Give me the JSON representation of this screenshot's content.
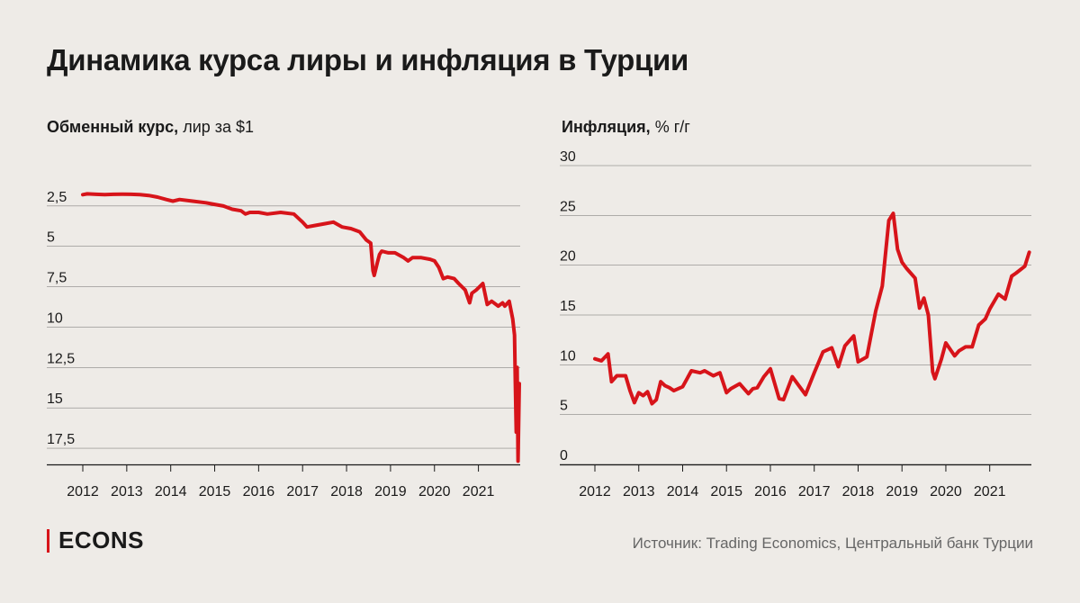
{
  "title": "Динамика курса лиры и инфляция в Турции",
  "brand": "ECONS",
  "source": "Источник: Trading Economics, Центральный банк Турции",
  "colors": {
    "line": "#d7141a",
    "grid": "#1a1a1a",
    "background": "#eeebe7",
    "accent": "#d7141a"
  },
  "chart_data": [
    {
      "type": "line",
      "title_bold": "Обменный курс,",
      "title_rest": " лир за $1",
      "y_inverted": true,
      "ylim": [
        0,
        18.5
      ],
      "y_ticks": [
        2.5,
        5,
        7.5,
        10,
        12.5,
        15,
        17.5
      ],
      "y_tick_labels": [
        "2,5",
        "5",
        "7,5",
        "10",
        "12,5",
        "15",
        "17,5"
      ],
      "xlim": [
        2012,
        2021.95
      ],
      "x_ticks": [
        2012,
        2013,
        2014,
        2015,
        2016,
        2017,
        2018,
        2019,
        2020,
        2021
      ],
      "x_tick_labels": [
        "2012",
        "2013",
        "2014",
        "2015",
        "2016",
        "2017",
        "2018",
        "2019",
        "2020",
        "2021"
      ],
      "grid": true,
      "series": [
        {
          "x": [
            2012.0,
            2012.1,
            2012.3,
            2012.5,
            2012.7,
            2012.9,
            2013.1,
            2013.3,
            2013.5,
            2013.7,
            2013.9,
            2014.05,
            2014.2,
            2014.5,
            2014.8,
            2015.0,
            2015.2,
            2015.4,
            2015.6,
            2015.7,
            2015.8,
            2016.0,
            2016.2,
            2016.5,
            2016.8,
            2017.0,
            2017.1,
            2017.3,
            2017.5,
            2017.7,
            2017.9,
            2018.1,
            2018.3,
            2018.45,
            2018.55,
            2018.6,
            2018.63,
            2018.7,
            2018.75,
            2018.8,
            2018.95,
            2019.1,
            2019.3,
            2019.4,
            2019.5,
            2019.7,
            2019.9,
            2020.0,
            2020.1,
            2020.2,
            2020.3,
            2020.45,
            2020.55,
            2020.7,
            2020.8,
            2020.85,
            2020.95,
            2021.1,
            2021.2,
            2021.3,
            2021.45,
            2021.55,
            2021.6,
            2021.7,
            2021.78,
            2021.82,
            2021.84,
            2021.86,
            2021.88,
            2021.9,
            2021.93
          ],
          "values": [
            1.8,
            1.75,
            1.78,
            1.8,
            1.78,
            1.77,
            1.78,
            1.8,
            1.85,
            1.95,
            2.1,
            2.2,
            2.1,
            2.2,
            2.3,
            2.4,
            2.5,
            2.7,
            2.8,
            3.0,
            2.9,
            2.9,
            3.0,
            2.9,
            3.0,
            3.5,
            3.8,
            3.7,
            3.6,
            3.5,
            3.8,
            3.9,
            4.1,
            4.6,
            4.8,
            6.5,
            6.8,
            6.0,
            5.5,
            5.3,
            5.4,
            5.4,
            5.7,
            5.9,
            5.7,
            5.7,
            5.8,
            5.9,
            6.3,
            7.0,
            6.9,
            7.0,
            7.3,
            7.7,
            8.5,
            7.9,
            7.7,
            7.3,
            8.6,
            8.4,
            8.7,
            8.5,
            8.7,
            8.4,
            9.5,
            10.5,
            13.5,
            16.5,
            12.5,
            18.3,
            13.5
          ]
        }
      ]
    },
    {
      "type": "line",
      "title_bold": "Инфляция,",
      "title_rest": " % г/г",
      "ylim": [
        0,
        30
      ],
      "y_ticks": [
        0,
        5,
        10,
        15,
        20,
        25,
        30
      ],
      "y_tick_labels": [
        "0",
        "5",
        "10",
        "15",
        "20",
        "25",
        "30"
      ],
      "xlim": [
        2012,
        2021.95
      ],
      "x_ticks": [
        2012,
        2013,
        2014,
        2015,
        2016,
        2017,
        2018,
        2019,
        2020,
        2021
      ],
      "x_tick_labels": [
        "2012",
        "2013",
        "2014",
        "2015",
        "2016",
        "2017",
        "2018",
        "2019",
        "2020",
        "2021"
      ],
      "grid": true,
      "series": [
        {
          "x": [
            2012.0,
            2012.15,
            2012.3,
            2012.38,
            2012.5,
            2012.7,
            2012.8,
            2012.9,
            2013.0,
            2013.1,
            2013.2,
            2013.3,
            2013.4,
            2013.5,
            2013.6,
            2013.7,
            2013.8,
            2014.0,
            2014.2,
            2014.4,
            2014.5,
            2014.7,
            2014.85,
            2015.0,
            2015.1,
            2015.3,
            2015.5,
            2015.6,
            2015.7,
            2015.85,
            2016.0,
            2016.2,
            2016.3,
            2016.5,
            2016.8,
            2017.0,
            2017.2,
            2017.4,
            2017.55,
            2017.7,
            2017.9,
            2018.0,
            2018.2,
            2018.4,
            2018.55,
            2018.7,
            2018.8,
            2018.9,
            2019.0,
            2019.1,
            2019.3,
            2019.4,
            2019.5,
            2019.6,
            2019.7,
            2019.75,
            2019.9,
            2020.0,
            2020.2,
            2020.3,
            2020.45,
            2020.6,
            2020.75,
            2020.9,
            2021.0,
            2021.2,
            2021.35,
            2021.5,
            2021.6,
            2021.8,
            2021.9
          ],
          "values": [
            10.6,
            10.4,
            11.1,
            8.3,
            8.9,
            8.9,
            7.4,
            6.2,
            7.2,
            6.9,
            7.3,
            6.1,
            6.5,
            8.3,
            7.9,
            7.7,
            7.4,
            7.8,
            9.4,
            9.2,
            9.4,
            8.9,
            9.2,
            7.2,
            7.6,
            8.1,
            7.1,
            7.6,
            7.7,
            8.8,
            9.6,
            6.6,
            6.5,
            8.8,
            7.0,
            9.2,
            11.3,
            11.7,
            9.8,
            11.9,
            12.9,
            10.3,
            10.8,
            15.4,
            17.9,
            24.5,
            25.2,
            21.6,
            20.3,
            19.7,
            18.7,
            15.7,
            16.7,
            15.0,
            9.3,
            8.6,
            10.6,
            12.2,
            10.9,
            11.4,
            11.8,
            11.8,
            14.0,
            14.6,
            15.6,
            17.1,
            16.6,
            18.9,
            19.2,
            19.9,
            21.3
          ]
        }
      ]
    }
  ]
}
